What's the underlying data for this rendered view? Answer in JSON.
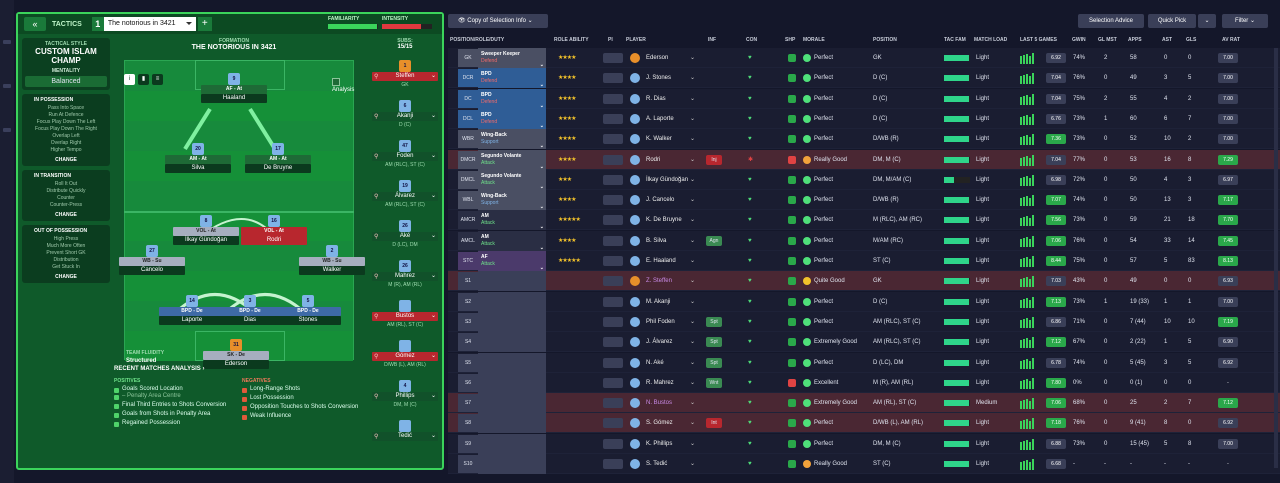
{
  "header": {
    "tactics_label": "TACTICS",
    "tactic_number": "1",
    "tactic_name": "The notorious in 3421",
    "familiarity_label": "FAMILIARITY",
    "intensity_label": "INTENSITY",
    "familiarity_level": 0.97,
    "intensity_level": 0.78
  },
  "style": {
    "label": "TACTICAL STYLE",
    "name": "CUSTOM ISLAM CHAMP",
    "mentality_label": "MENTALITY",
    "mentality_value": "Balanced"
  },
  "in_possession": {
    "title": "IN POSSESSION",
    "items": [
      "Pass Into Space",
      "Run At Defence",
      "Focus Play Down The Left",
      "Focus Play Down The Right",
      "Overlap Left",
      "Overlap Right",
      "Higher Tempo"
    ],
    "change": "CHANGE"
  },
  "in_transition": {
    "title": "IN TRANSITION",
    "items": [
      "Roll It Out",
      "Distribute Quickly",
      "Counter",
      "Counter-Press"
    ],
    "change": "CHANGE"
  },
  "out_of_possession": {
    "title": "OUT OF POSSESSION",
    "items": [
      "High Press",
      "Much More Often",
      "Prevent Short GK",
      "Distribution",
      "Get Stuck In"
    ],
    "change": "CHANGE"
  },
  "formation": {
    "label": "FORMATION",
    "name": "THE NOTORIOUS IN 3421",
    "subs_label": "SUBS:",
    "subs_count": "15/15",
    "analysis": "Analysis",
    "fluidity_label": "TEAM FLUIDITY",
    "fluidity_value": "Structured"
  },
  "pitch_players": [
    {
      "num": "9",
      "role": "AF - At",
      "name": "Haaland",
      "color": "green"
    },
    {
      "num": "20",
      "role": "AM - At",
      "name": "Silva",
      "color": "green"
    },
    {
      "num": "17",
      "role": "AM - At",
      "name": "De Bruyne",
      "color": "green"
    },
    {
      "num": "8",
      "role": "VOL - At",
      "name": "İlkay Gündoğan",
      "color": "grey"
    },
    {
      "num": "16",
      "role": "VOL - At",
      "name": "Rodri",
      "color": "grey"
    },
    {
      "num": "27",
      "role": "WB - Su",
      "name": "Cancelo",
      "color": "grey"
    },
    {
      "num": "2",
      "role": "WB - Su",
      "name": "Walker",
      "color": "grey"
    },
    {
      "num": "14",
      "role": "BPD - De",
      "name": "Laporte",
      "color": "blue"
    },
    {
      "num": "3",
      "role": "BPD - De",
      "name": "Dias",
      "color": "blue"
    },
    {
      "num": "5",
      "role": "BPD - De",
      "name": "Stones",
      "color": "blue"
    },
    {
      "num": "31",
      "role": "SK - De",
      "name": "Ederson",
      "color": "grey"
    }
  ],
  "subs": [
    {
      "num": "1",
      "name": "Steffen",
      "pos": "GK"
    },
    {
      "num": "6",
      "name": "Akanji",
      "pos": "D (C)"
    },
    {
      "num": "47",
      "name": "Foden",
      "pos": "AM (RLC), ST (C)"
    },
    {
      "num": "19",
      "name": "Álvarez",
      "pos": "AM (RLC), ST (C)"
    },
    {
      "num": "26",
      "name": "Aké",
      "pos": "D (LC), DM"
    },
    {
      "num": "26",
      "name": "Mahrez",
      "pos": "M (R), AM (RL)"
    },
    {
      "num": "",
      "name": "Bustos",
      "pos": "AM (RL), ST (C)"
    },
    {
      "num": "",
      "name": "Gómez",
      "pos": "D/WB (L), AM (RL)"
    },
    {
      "num": "4",
      "name": "Phillips",
      "pos": "DM, M (C)"
    },
    {
      "num": "",
      "name": "Tedić",
      "pos": ""
    }
  ],
  "recent": {
    "title": "RECENT MATCHES ANALYSIS",
    "positives_label": "POSITIVES",
    "positives": [
      "Goals Scored Location",
      "Final Third Entries to Shots Conversion",
      "Goals from Shots in Penalty Area",
      "Regained Possession"
    ],
    "positives_sub": "Penalty Area Centre",
    "negatives_label": "NEGATIVES",
    "negatives": [
      "Long-Range Shots",
      "Lost Possession",
      "Opposition Touches to Shots Conversion",
      "Weak Influence"
    ]
  },
  "right_top": {
    "copy": "Copy of Selection Info",
    "advice": "Selection Advice",
    "quick": "Quick Pick",
    "filter": "Filter"
  },
  "columns": {
    "pos": "POSITION/ROLE/DUTY",
    "ability": "ROLE ABILITY",
    "pi": "PI",
    "player": "PLAYER",
    "inf": "INF",
    "con": "CON",
    "shp": "SHP",
    "morale": "MORALE",
    "position": "POSITION",
    "tacfam": "TAC FAM",
    "load": "MATCH LOAD",
    "last5": "LAST 5 GAMES",
    "gwin": "GWIN",
    "glmst": "GL MST",
    "apps": "APPS",
    "ast": "AST",
    "gls": "GLS",
    "avrat": "AV RAT"
  },
  "table": [
    {
      "pos": "GK",
      "role": "Sweeper Keeper",
      "duty": "Defend",
      "stars": "★★★★",
      "player": "Ederson",
      "inf": "",
      "morale": "Perfect",
      "position": "GK",
      "load": "Light",
      "l5": "6.92",
      "gwin": "74%",
      "glmst": "2",
      "apps": "58",
      "ast": "0",
      "gls": "0",
      "avrat": "7.00",
      "rc": "#4a4f63",
      "hl": false,
      "gk": true
    },
    {
      "pos": "DCR",
      "role": "BPD",
      "duty": "Defend",
      "stars": "★★★★",
      "player": "J. Stones",
      "inf": "",
      "morale": "Perfect",
      "position": "D (C)",
      "load": "Light",
      "l5": "7.04",
      "gwin": "76%",
      "glmst": "0",
      "apps": "49",
      "ast": "3",
      "gls": "5",
      "avrat": "7.00",
      "rc": "#2f5d96",
      "hl": false
    },
    {
      "pos": "DC",
      "role": "BPD",
      "duty": "Defend",
      "stars": "★★★★",
      "player": "R. Dias",
      "inf": "",
      "morale": "Perfect",
      "position": "D (C)",
      "load": "Light",
      "l5": "7.04",
      "gwin": "75%",
      "glmst": "2",
      "apps": "55",
      "ast": "4",
      "gls": "2",
      "avrat": "7.00",
      "rc": "#2f5d96",
      "hl": false
    },
    {
      "pos": "DCL",
      "role": "BPD",
      "duty": "Defend",
      "stars": "★★★★",
      "player": "A. Laporte",
      "inf": "",
      "morale": "Perfect",
      "position": "D (C)",
      "load": "Light",
      "l5": "6.76",
      "gwin": "73%",
      "glmst": "1",
      "apps": "60",
      "ast": "6",
      "gls": "7",
      "avrat": "7.00",
      "rc": "#2f5d96",
      "hl": false
    },
    {
      "pos": "WBR",
      "role": "Wing-Back",
      "duty": "Support",
      "stars": "★★★★",
      "player": "K. Walker",
      "inf": "",
      "morale": "Perfect",
      "position": "D/WB (R)",
      "load": "Light",
      "l5": "7.36",
      "gwin": "73%",
      "glmst": "0",
      "apps": "52",
      "ast": "10",
      "gls": "2",
      "avrat": "7.00",
      "rc": "#4a4f63",
      "hl": false
    },
    {
      "pos": "DMCR",
      "role": "Segundo Volante",
      "duty": "Attack",
      "stars": "★★★★",
      "player": "Rodri",
      "inf": "Inj",
      "morale": "Really Good",
      "position": "DM, M (C)",
      "load": "Light",
      "l5": "7.04",
      "gwin": "77%",
      "glmst": "0",
      "apps": "53",
      "ast": "16",
      "gls": "8",
      "avrat": "7.29",
      "rc": "#4a4f63",
      "hl": true
    },
    {
      "pos": "DMCL",
      "role": "Segundo Volante",
      "duty": "Attack",
      "stars": "★★★",
      "player": "İlkay Gündoğan",
      "inf": "",
      "morale": "Perfect",
      "position": "DM, M/AM (C)",
      "load": "Light",
      "l5": "6.98",
      "gwin": "72%",
      "glmst": "0",
      "apps": "50",
      "ast": "4",
      "gls": "3",
      "avrat": "6.97",
      "rc": "#4a4f63",
      "hl": false
    },
    {
      "pos": "WBL",
      "role": "Wing-Back",
      "duty": "Support",
      "stars": "★★★★",
      "player": "J. Cancelo",
      "inf": "",
      "morale": "Perfect",
      "position": "D/WB (R)",
      "load": "Light",
      "l5": "7.07",
      "gwin": "74%",
      "glmst": "0",
      "apps": "50",
      "ast": "13",
      "gls": "3",
      "avrat": "7.17",
      "rc": "#4a4f63",
      "hl": false
    },
    {
      "pos": "AMCR",
      "role": "AM",
      "duty": "Attack",
      "stars": "★★★★★",
      "player": "K. De Bruyne",
      "inf": "",
      "morale": "Perfect",
      "position": "M (RLC), AM (RC)",
      "load": "Light",
      "l5": "7.56",
      "gwin": "73%",
      "glmst": "0",
      "apps": "59",
      "ast": "21",
      "gls": "18",
      "avrat": "7.70",
      "rc": "#2a2e44",
      "hl": false
    },
    {
      "pos": "AMCL",
      "role": "AM",
      "duty": "Attack",
      "stars": "★★★★",
      "player": "B. Silva",
      "inf": "Agn",
      "morale": "Perfect",
      "position": "M/AM (RC)",
      "load": "Light",
      "l5": "7.06",
      "gwin": "76%",
      "glmst": "0",
      "apps": "54",
      "ast": "33",
      "gls": "14",
      "avrat": "7.45",
      "rc": "#2a2e44",
      "hl": false
    },
    {
      "pos": "STC",
      "role": "AF",
      "duty": "Attack",
      "stars": "★★★★★",
      "player": "E. Haaland",
      "inf": "",
      "morale": "Perfect",
      "position": "ST (C)",
      "load": "Light",
      "l5": "8.44",
      "gwin": "75%",
      "glmst": "0",
      "apps": "57",
      "ast": "5",
      "gls": "83",
      "avrat": "8.13",
      "rc": "#4b3a6b",
      "hl": false
    },
    {
      "pos": "S1",
      "role": "",
      "duty": "",
      "stars": "",
      "player": "Z. Steffen",
      "inf": "",
      "morale": "Quite Good",
      "position": "GK",
      "load": "Light",
      "l5": "7.03",
      "gwin": "43%",
      "glmst": "0",
      "apps": "49",
      "ast": "0",
      "gls": "0",
      "avrat": "6.93",
      "rc": "",
      "hl": true,
      "gk": true
    },
    {
      "pos": "S2",
      "role": "",
      "duty": "",
      "stars": "",
      "player": "M. Akanji",
      "inf": "",
      "morale": "Perfect",
      "position": "D (C)",
      "load": "Light",
      "l5": "7.13",
      "gwin": "73%",
      "glmst": "1",
      "apps": "19 (33)",
      "ast": "1",
      "gls": "1",
      "avrat": "7.00",
      "rc": "",
      "hl": false
    },
    {
      "pos": "S3",
      "role": "",
      "duty": "",
      "stars": "",
      "player": "Phil Foden",
      "inf": "Spt",
      "morale": "Perfect",
      "position": "AM (RLC), ST (C)",
      "load": "Light",
      "l5": "6.86",
      "gwin": "71%",
      "glmst": "0",
      "apps": "7 (44)",
      "ast": "10",
      "gls": "10",
      "avrat": "7.19",
      "rc": "",
      "hl": false
    },
    {
      "pos": "S4",
      "role": "",
      "duty": "",
      "stars": "",
      "player": "J. Álvarez",
      "inf": "Spt",
      "morale": "Extremely Good",
      "position": "AM (RLC), ST (C)",
      "load": "Light",
      "l5": "7.12",
      "gwin": "67%",
      "glmst": "0",
      "apps": "2 (22)",
      "ast": "1",
      "gls": "5",
      "avrat": "6.90",
      "rc": "",
      "hl": false
    },
    {
      "pos": "S5",
      "role": "",
      "duty": "",
      "stars": "",
      "player": "N. Aké",
      "inf": "Spt",
      "morale": "Perfect",
      "position": "D (LC), DM",
      "load": "Light",
      "l5": "6.78",
      "gwin": "74%",
      "glmst": "0",
      "apps": "5 (45)",
      "ast": "3",
      "gls": "5",
      "avrat": "6.92",
      "rc": "",
      "hl": false
    },
    {
      "pos": "S6",
      "role": "",
      "duty": "",
      "stars": "",
      "player": "R. Mahrez",
      "inf": "Wnt",
      "morale": "Excellent",
      "position": "M (R), AM (RL)",
      "load": "Light",
      "l5": "7.80",
      "gwin": "0%",
      "glmst": "0",
      "apps": "0 (1)",
      "ast": "0",
      "gls": "0",
      "avrat": "-",
      "rc": "",
      "hl": false
    },
    {
      "pos": "S7",
      "role": "",
      "duty": "",
      "stars": "",
      "player": "N. Bustos",
      "inf": "",
      "morale": "Extremely Good",
      "position": "AM (RL), ST (C)",
      "load": "Medium",
      "l5": "7.06",
      "gwin": "68%",
      "glmst": "0",
      "apps": "25",
      "ast": "2",
      "gls": "7",
      "avrat": "7.12",
      "rc": "",
      "hl": true
    },
    {
      "pos": "S8",
      "role": "",
      "duty": "",
      "stars": "",
      "player": "S. Gómez",
      "inf": "Int",
      "morale": "Perfect",
      "position": "D/WB (L), AM (RL)",
      "load": "Light",
      "l5": "7.18",
      "gwin": "76%",
      "glmst": "0",
      "apps": "9 (41)",
      "ast": "8",
      "gls": "0",
      "avrat": "6.92",
      "rc": "",
      "hl": true
    },
    {
      "pos": "S9",
      "role": "",
      "duty": "",
      "stars": "",
      "player": "K. Phillips",
      "inf": "",
      "morale": "Perfect",
      "position": "DM, M (C)",
      "load": "Light",
      "l5": "6.88",
      "gwin": "73%",
      "glmst": "0",
      "apps": "15 (45)",
      "ast": "5",
      "gls": "8",
      "avrat": "7.00",
      "rc": "",
      "hl": false
    },
    {
      "pos": "S10",
      "role": "",
      "duty": "",
      "stars": "",
      "player": "S. Tedić",
      "inf": "",
      "morale": "Really Good",
      "position": "ST (C)",
      "load": "Light",
      "l5": "6.68",
      "gwin": "-",
      "glmst": "-",
      "apps": "-",
      "ast": "-",
      "gls": "-",
      "avrat": "-",
      "rc": "",
      "hl": false
    }
  ]
}
